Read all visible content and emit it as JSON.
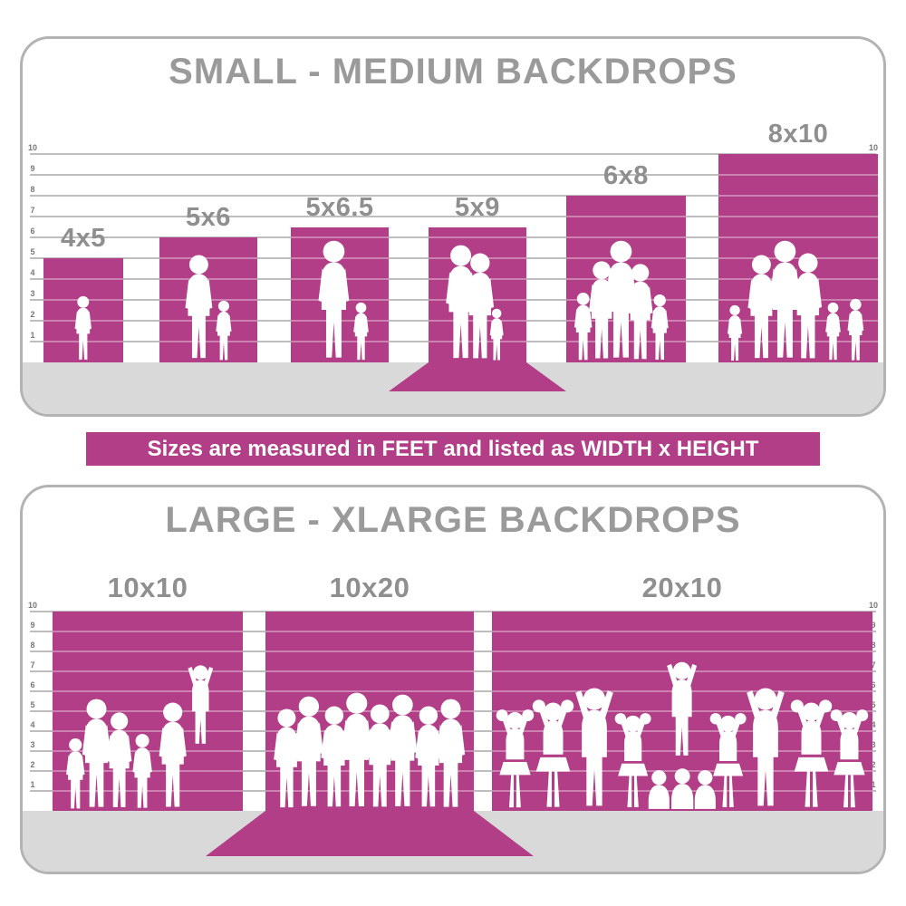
{
  "banner": {
    "text": "Sizes are measured in FEET and listed as WIDTH x HEIGHT"
  },
  "colors": {
    "magenta": "#b23e88",
    "title_gray": "#9a9a9a",
    "label_gray": "#8f8f8f",
    "floor_gray": "#d9d9d9",
    "border_gray": "#b3b3b3",
    "white": "#ffffff"
  },
  "ruler": {
    "min": 1,
    "max": 10,
    "unit": "feet"
  },
  "panels": [
    {
      "title": "SMALL - MEDIUM BACKDROPS",
      "bars": [
        {
          "label": "4x5",
          "width_ft": 4,
          "height_ft": 5,
          "sweep": false,
          "figures": [
            {
              "type": "child",
              "x": 0.5,
              "h": 3.2
            }
          ]
        },
        {
          "label": "5x6",
          "width_ft": 5,
          "height_ft": 6,
          "sweep": false,
          "figures": [
            {
              "type": "adult",
              "x": 0.4,
              "h": 5.2
            },
            {
              "type": "child",
              "x": 0.66,
              "h": 3.0
            }
          ]
        },
        {
          "label": "5x6.5",
          "width_ft": 5,
          "height_ft": 6.5,
          "sweep": false,
          "figures": [
            {
              "type": "adult",
              "x": 0.44,
              "h": 5.9
            },
            {
              "type": "child",
              "x": 0.72,
              "h": 2.9
            }
          ]
        },
        {
          "label": "5x9",
          "width_ft": 5,
          "height_ft": 9,
          "sweep": true,
          "figures": [
            {
              "type": "adult",
              "x": 0.33,
              "h": 5.7
            },
            {
              "type": "adult",
              "x": 0.53,
              "h": 5.3
            },
            {
              "type": "child",
              "x": 0.7,
              "h": 2.6
            }
          ]
        },
        {
          "label": "6x8",
          "width_ft": 6,
          "height_ft": 8,
          "sweep": false,
          "figures": [
            {
              "type": "child",
              "x": 0.14,
              "h": 3.4
            },
            {
              "type": "adult",
              "x": 0.3,
              "h": 4.9
            },
            {
              "type": "adult",
              "x": 0.46,
              "h": 5.9
            },
            {
              "type": "adult",
              "x": 0.62,
              "h": 4.8
            },
            {
              "type": "child",
              "x": 0.78,
              "h": 3.3
            }
          ]
        },
        {
          "label": "8x10",
          "width_ft": 8,
          "height_ft": 10,
          "sweep": false,
          "figures": [
            {
              "type": "child",
              "x": 0.1,
              "h": 2.8
            },
            {
              "type": "adult",
              "x": 0.27,
              "h": 5.2
            },
            {
              "type": "adult",
              "x": 0.42,
              "h": 5.9
            },
            {
              "type": "adult",
              "x": 0.56,
              "h": 5.3
            },
            {
              "type": "child",
              "x": 0.72,
              "h": 2.9
            },
            {
              "type": "child",
              "x": 0.86,
              "h": 3.1
            }
          ]
        }
      ]
    },
    {
      "title": "LARGE - XLARGE BACKDROPS",
      "bars": [
        {
          "label": "10x10",
          "width_ft": 10,
          "height_ft": 10,
          "sweep": false,
          "figures": [
            {
              "type": "child",
              "x": 0.12,
              "h": 3.7
            },
            {
              "type": "adult",
              "x": 0.23,
              "h": 5.7
            },
            {
              "type": "adult",
              "x": 0.35,
              "h": 5.0
            },
            {
              "type": "child",
              "x": 0.47,
              "h": 3.9
            },
            {
              "type": "adult",
              "x": 0.63,
              "h": 5.5
            },
            {
              "type": "armsup",
              "x": 0.78,
              "h": 4.2,
              "lift": 3.2
            }
          ]
        },
        {
          "label": "10x20",
          "width_ft": 10,
          "height_ft": 20,
          "sweep": true,
          "figures": [
            {
              "type": "adult",
              "x": 0.1,
              "h": 5.2
            },
            {
              "type": "adult",
              "x": 0.21,
              "h": 5.8
            },
            {
              "type": "adult",
              "x": 0.33,
              "h": 5.3
            },
            {
              "type": "adult",
              "x": 0.44,
              "h": 6.0
            },
            {
              "type": "adult",
              "x": 0.55,
              "h": 5.4
            },
            {
              "type": "adult",
              "x": 0.66,
              "h": 5.9
            },
            {
              "type": "adult",
              "x": 0.78,
              "h": 5.3
            },
            {
              "type": "adult",
              "x": 0.89,
              "h": 5.7
            }
          ]
        },
        {
          "label": "20x10",
          "width_ft": 20,
          "height_ft": 10,
          "sweep": false,
          "figures": [
            {
              "type": "pom",
              "x": 0.06,
              "h": 5.2
            },
            {
              "type": "pom",
              "x": 0.16,
              "h": 5.7
            },
            {
              "type": "armsup",
              "x": 0.27,
              "h": 6.3
            },
            {
              "type": "pom",
              "x": 0.37,
              "h": 5.0
            },
            {
              "type": "armsup",
              "x": 0.5,
              "h": 5.0,
              "lift": 2.6
            },
            {
              "type": "pom",
              "x": 0.62,
              "h": 5.0
            },
            {
              "type": "armsup",
              "x": 0.72,
              "h": 6.3
            },
            {
              "type": "pom",
              "x": 0.84,
              "h": 5.7
            },
            {
              "type": "pom",
              "x": 0.94,
              "h": 5.2
            },
            {
              "type": "kneel",
              "x": 0.44,
              "h": 2.1
            },
            {
              "type": "kneel",
              "x": 0.5,
              "h": 2.2
            },
            {
              "type": "kneel",
              "x": 0.56,
              "h": 2.1
            }
          ]
        }
      ]
    }
  ],
  "chart_data": [
    {
      "type": "bar",
      "title": "SMALL - MEDIUM BACKDROPS",
      "categories": [
        "4x5",
        "5x6",
        "5x6.5",
        "5x9",
        "6x8",
        "8x10"
      ],
      "series": [
        {
          "name": "width_ft",
          "values": [
            4,
            5,
            5,
            5,
            6,
            8
          ]
        },
        {
          "name": "height_ft",
          "values": [
            5,
            6,
            6.5,
            9,
            8,
            10
          ]
        }
      ],
      "xlabel": "",
      "ylabel": "feet",
      "ylim": [
        0,
        10
      ],
      "grid": true,
      "legend_position": "none",
      "annotations": [
        "5x9 drawn as a sweep backdrop with floor extension"
      ]
    },
    {
      "type": "bar",
      "title": "LARGE - XLARGE BACKDROPS",
      "categories": [
        "10x10",
        "10x20",
        "20x10"
      ],
      "series": [
        {
          "name": "width_ft",
          "values": [
            10,
            10,
            20
          ]
        },
        {
          "name": "height_ft",
          "values": [
            10,
            20,
            10
          ]
        }
      ],
      "xlabel": "",
      "ylabel": "feet",
      "ylim": [
        0,
        10
      ],
      "grid": true,
      "legend_position": "none",
      "annotations": [
        "10x20 drawn as a sweep backdrop with floor extension"
      ]
    }
  ]
}
